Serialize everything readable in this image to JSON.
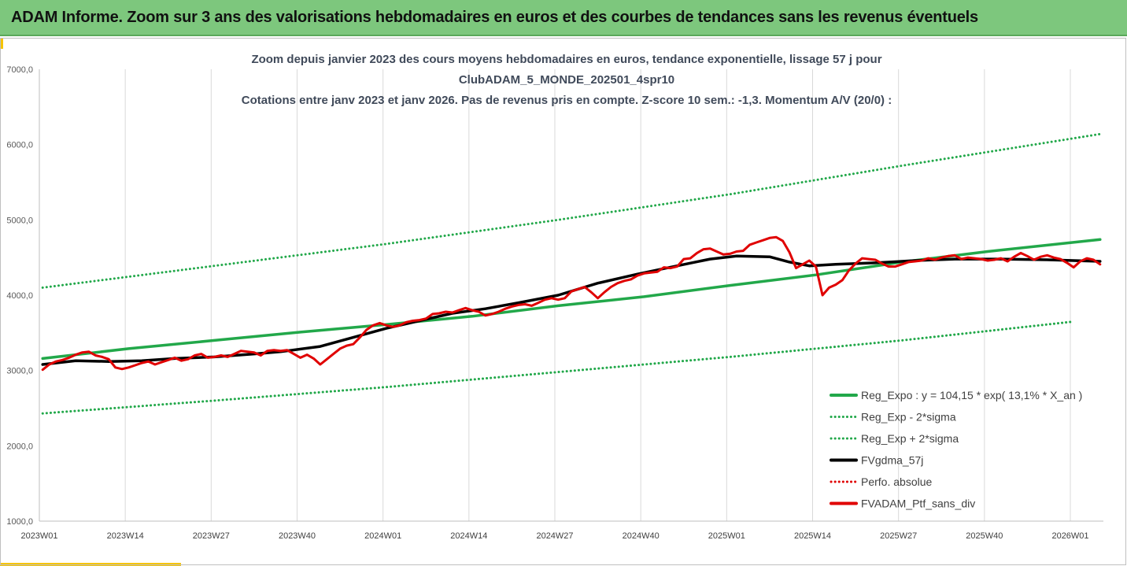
{
  "banner": {
    "title": "ADAM Informe. Zoom sur 3 ans des valorisations hebdomadaires en euros et des courbes de tendances sans les revenus éventuels"
  },
  "chart_data": {
    "type": "line",
    "title_lines": [
      "Zoom depuis janvier 2023 des cours moyens hebdomadaires  en euros, tendance exponentielle, lissage 57 j pour",
      "ClubADAM_5_MONDE_202501_4spr10",
      "Cotations entre janv 2023 et janv 2026. Pas de revenus pris en compte. Z-score 10 sem.: -1,3. Momentum A/V (20/0) :"
    ],
    "ylim": [
      1000,
      7000
    ],
    "y_ticks": [
      "1000,0",
      "2000,0",
      "3000,0",
      "4000,0",
      "5000,0",
      "6000,0",
      "7000,0"
    ],
    "x_ticks": [
      "2023W01",
      "2023W14",
      "2023W27",
      "2023W40",
      "2024W01",
      "2024W14",
      "2024W27",
      "2024W40",
      "2025W01",
      "2025W14",
      "2025W27",
      "2025W40",
      "2026W01"
    ],
    "grid": "vertical",
    "legend_position": "bottom-right",
    "series": [
      {
        "name": "Reg_Expo : y = 104,15 * exp( 13,1% *  X_an )",
        "color": "#22a84a",
        "style": "solid",
        "points": [
          [
            0,
            3160
          ],
          [
            13,
            3290
          ],
          [
            26,
            3400
          ],
          [
            39,
            3510
          ],
          [
            52,
            3610
          ],
          [
            65,
            3720
          ],
          [
            78,
            3860
          ],
          [
            91,
            3980
          ],
          [
            104,
            4130
          ],
          [
            117,
            4270
          ],
          [
            130,
            4440
          ],
          [
            143,
            4580
          ],
          [
            160,
            4740
          ]
        ]
      },
      {
        "name": "Reg_Exp - 2*sigma",
        "color": "#22a84a",
        "style": "dotted",
        "points": [
          [
            0,
            2430
          ],
          [
            26,
            2600
          ],
          [
            52,
            2780
          ],
          [
            78,
            2980
          ],
          [
            104,
            3180
          ],
          [
            130,
            3400
          ],
          [
            156,
            3650
          ]
        ]
      },
      {
        "name": "Reg_Exp + 2*sigma",
        "color": "#22a84a",
        "style": "dotted",
        "points": [
          [
            0,
            4100
          ],
          [
            26,
            4390
          ],
          [
            52,
            4680
          ],
          [
            78,
            5000
          ],
          [
            104,
            5340
          ],
          [
            130,
            5720
          ],
          [
            160,
            6140
          ]
        ]
      },
      {
        "name": "FVgdma_57j",
        "color": "#000000",
        "style": "solid",
        "points": [
          [
            0,
            3080
          ],
          [
            5,
            3130
          ],
          [
            10,
            3120
          ],
          [
            15,
            3130
          ],
          [
            20,
            3160
          ],
          [
            26,
            3180
          ],
          [
            32,
            3220
          ],
          [
            36,
            3250
          ],
          [
            42,
            3320
          ],
          [
            47,
            3440
          ],
          [
            52,
            3560
          ],
          [
            57,
            3660
          ],
          [
            62,
            3760
          ],
          [
            67,
            3820
          ],
          [
            72,
            3900
          ],
          [
            78,
            4000
          ],
          [
            84,
            4160
          ],
          [
            90,
            4280
          ],
          [
            96,
            4390
          ],
          [
            101,
            4480
          ],
          [
            105,
            4520
          ],
          [
            110,
            4510
          ],
          [
            113,
            4440
          ],
          [
            116,
            4390
          ],
          [
            120,
            4410
          ],
          [
            126,
            4430
          ],
          [
            132,
            4460
          ],
          [
            138,
            4480
          ],
          [
            145,
            4480
          ],
          [
            152,
            4470
          ],
          [
            160,
            4450
          ]
        ]
      },
      {
        "name": "Perfo. absolue",
        "color": "#e00000",
        "style": "dotted",
        "points": []
      },
      {
        "name": "FVADAM_Ptf_sans_div",
        "color": "#e00000",
        "style": "solid",
        "points": [
          [
            0,
            3010
          ],
          [
            1,
            3080
          ],
          [
            2,
            3120
          ],
          [
            3,
            3140
          ],
          [
            4,
            3170
          ],
          [
            5,
            3210
          ],
          [
            6,
            3240
          ],
          [
            7,
            3250
          ],
          [
            8,
            3200
          ],
          [
            9,
            3180
          ],
          [
            10,
            3150
          ],
          [
            11,
            3040
          ],
          [
            12,
            3020
          ],
          [
            13,
            3040
          ],
          [
            14,
            3070
          ],
          [
            15,
            3100
          ],
          [
            16,
            3120
          ],
          [
            17,
            3080
          ],
          [
            18,
            3110
          ],
          [
            19,
            3140
          ],
          [
            20,
            3170
          ],
          [
            21,
            3130
          ],
          [
            22,
            3150
          ],
          [
            23,
            3200
          ],
          [
            24,
            3220
          ],
          [
            25,
            3170
          ],
          [
            26,
            3180
          ],
          [
            27,
            3200
          ],
          [
            28,
            3180
          ],
          [
            29,
            3220
          ],
          [
            30,
            3260
          ],
          [
            31,
            3250
          ],
          [
            32,
            3240
          ],
          [
            33,
            3200
          ],
          [
            34,
            3260
          ],
          [
            35,
            3270
          ],
          [
            36,
            3260
          ],
          [
            37,
            3270
          ],
          [
            38,
            3220
          ],
          [
            39,
            3170
          ],
          [
            40,
            3210
          ],
          [
            41,
            3160
          ],
          [
            42,
            3080
          ],
          [
            43,
            3150
          ],
          [
            44,
            3220
          ],
          [
            45,
            3290
          ],
          [
            46,
            3330
          ],
          [
            47,
            3350
          ],
          [
            48,
            3440
          ],
          [
            49,
            3540
          ],
          [
            50,
            3600
          ],
          [
            51,
            3630
          ],
          [
            52,
            3600
          ],
          [
            53,
            3580
          ],
          [
            54,
            3600
          ],
          [
            55,
            3640
          ],
          [
            56,
            3660
          ],
          [
            57,
            3670
          ],
          [
            58,
            3690
          ],
          [
            59,
            3750
          ],
          [
            60,
            3760
          ],
          [
            61,
            3780
          ],
          [
            62,
            3770
          ],
          [
            63,
            3800
          ],
          [
            64,
            3830
          ],
          [
            65,
            3800
          ],
          [
            66,
            3780
          ],
          [
            67,
            3730
          ],
          [
            68,
            3750
          ],
          [
            69,
            3780
          ],
          [
            70,
            3820
          ],
          [
            71,
            3850
          ],
          [
            72,
            3870
          ],
          [
            73,
            3880
          ],
          [
            74,
            3860
          ],
          [
            75,
            3900
          ],
          [
            76,
            3940
          ],
          [
            77,
            3960
          ],
          [
            78,
            3940
          ],
          [
            79,
            3960
          ],
          [
            80,
            4050
          ],
          [
            81,
            4080
          ],
          [
            82,
            4110
          ],
          [
            83,
            4040
          ],
          [
            84,
            3960
          ],
          [
            85,
            4040
          ],
          [
            86,
            4110
          ],
          [
            87,
            4160
          ],
          [
            88,
            4190
          ],
          [
            89,
            4210
          ],
          [
            90,
            4260
          ],
          [
            91,
            4290
          ],
          [
            92,
            4300
          ],
          [
            93,
            4310
          ],
          [
            94,
            4370
          ],
          [
            95,
            4360
          ],
          [
            96,
            4380
          ],
          [
            97,
            4480
          ],
          [
            98,
            4490
          ],
          [
            99,
            4560
          ],
          [
            100,
            4610
          ],
          [
            101,
            4620
          ],
          [
            102,
            4580
          ],
          [
            103,
            4540
          ],
          [
            104,
            4550
          ],
          [
            105,
            4580
          ],
          [
            106,
            4590
          ],
          [
            107,
            4670
          ],
          [
            108,
            4700
          ],
          [
            109,
            4730
          ],
          [
            110,
            4760
          ],
          [
            111,
            4770
          ],
          [
            112,
            4720
          ],
          [
            113,
            4570
          ],
          [
            114,
            4360
          ],
          [
            115,
            4410
          ],
          [
            116,
            4460
          ],
          [
            117,
            4380
          ],
          [
            118,
            4000
          ],
          [
            119,
            4100
          ],
          [
            120,
            4140
          ],
          [
            121,
            4200
          ],
          [
            122,
            4330
          ],
          [
            123,
            4420
          ],
          [
            124,
            4490
          ],
          [
            125,
            4480
          ],
          [
            126,
            4470
          ],
          [
            127,
            4420
          ],
          [
            128,
            4380
          ],
          [
            129,
            4380
          ],
          [
            130,
            4410
          ],
          [
            131,
            4440
          ],
          [
            132,
            4450
          ],
          [
            133,
            4460
          ],
          [
            134,
            4490
          ],
          [
            135,
            4470
          ],
          [
            136,
            4500
          ],
          [
            137,
            4520
          ],
          [
            138,
            4530
          ],
          [
            139,
            4480
          ],
          [
            140,
            4500
          ],
          [
            141,
            4490
          ],
          [
            142,
            4480
          ],
          [
            143,
            4460
          ],
          [
            144,
            4470
          ],
          [
            145,
            4490
          ],
          [
            146,
            4450
          ],
          [
            147,
            4510
          ],
          [
            148,
            4560
          ],
          [
            149,
            4520
          ],
          [
            150,
            4470
          ],
          [
            151,
            4510
          ],
          [
            152,
            4530
          ],
          [
            153,
            4500
          ],
          [
            154,
            4480
          ],
          [
            155,
            4430
          ],
          [
            156,
            4370
          ],
          [
            157,
            4450
          ],
          [
            158,
            4490
          ],
          [
            159,
            4470
          ],
          [
            160,
            4410
          ]
        ]
      }
    ]
  }
}
